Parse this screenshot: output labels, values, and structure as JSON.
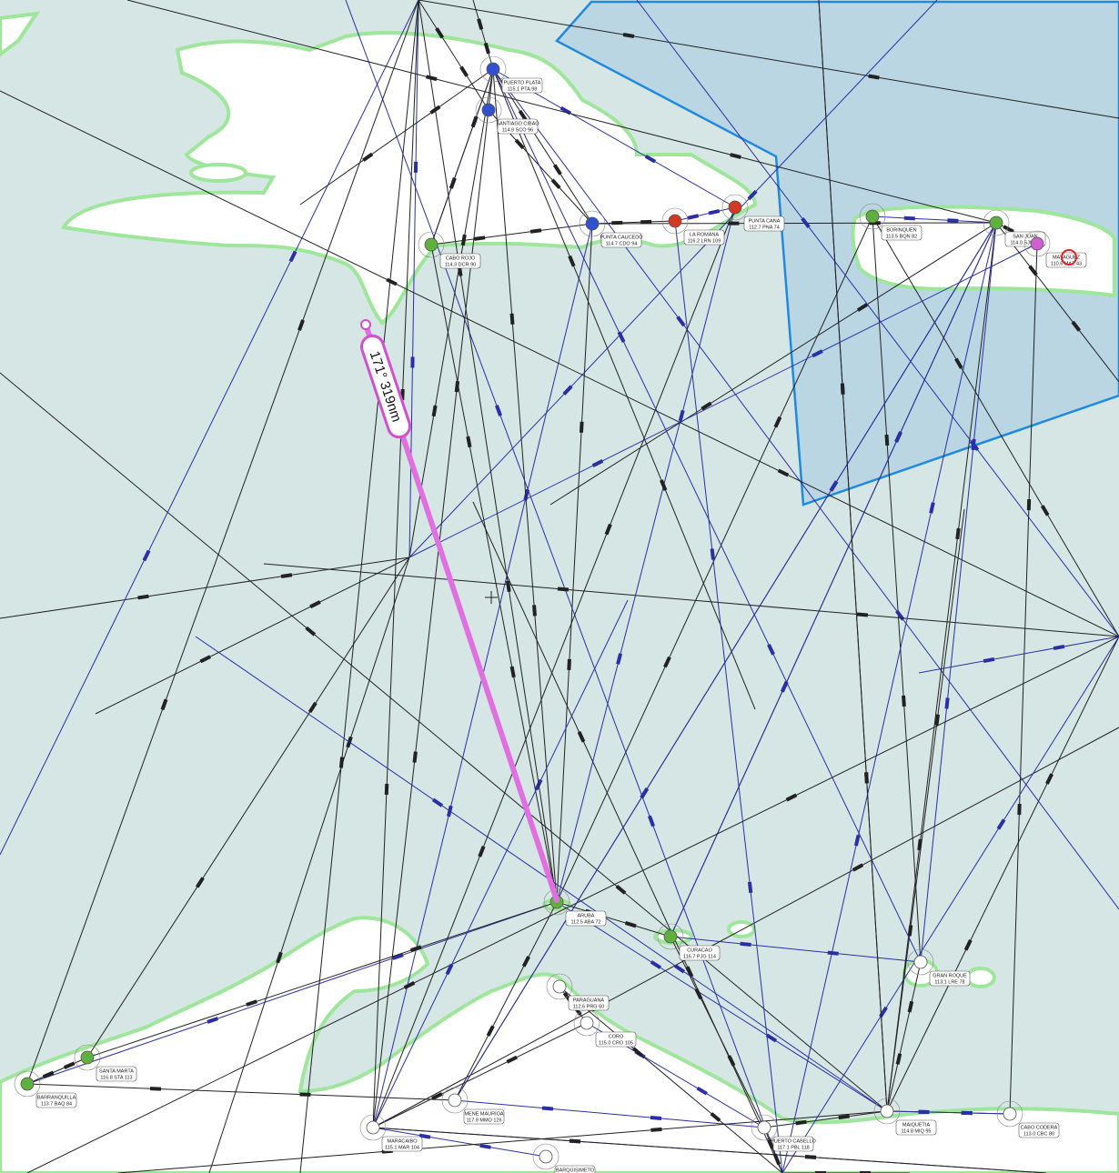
{
  "measurement": {
    "label": "171° 319nm"
  },
  "navaids": [
    {
      "name": "PUERTO PLATA",
      "freq": "115.1 PTA 98"
    },
    {
      "name": "SANTIAGO CIBAO",
      "freq": "114.9 SCO 96"
    },
    {
      "name": "PUNTA CAUCEDO",
      "freq": "114.7 CDO 94"
    },
    {
      "name": "LA ROMANA",
      "freq": "116.2 LRN 109"
    },
    {
      "name": "PUNTA CANA",
      "freq": "112.7 PNA 74"
    },
    {
      "name": "CABO ROJO",
      "freq": "114.3 DCR 90"
    },
    {
      "name": "BORINQUEN",
      "freq": "113.5 BQN 82"
    },
    {
      "name": "SAN JUAN",
      "freq": "114.0 SJU 87"
    },
    {
      "name": "MAYAGUEZ",
      "freq": "110.6 MAZ 43"
    },
    {
      "name": "ARUBA",
      "freq": "112.5 ABA 72"
    },
    {
      "name": "CURACAO",
      "freq": "116.7 PJG 114"
    },
    {
      "name": "PARAGUANA",
      "freq": "112.6 PRG 60"
    },
    {
      "name": "CORO",
      "freq": "115.0 CRO 105"
    },
    {
      "name": "GRAN ROQUE",
      "freq": "113.1 LRE 78"
    },
    {
      "name": "MAIQUETIA",
      "freq": "114.8 MIQ 95"
    },
    {
      "name": "CABO CODERA",
      "freq": "113.0 CBC 80"
    },
    {
      "name": "SANTA MARTA",
      "freq": "116.8 STA 113"
    },
    {
      "name": "BARRANQUILLA",
      "freq": "113.7 BAQ 84"
    },
    {
      "name": "MENE MAURIOA",
      "freq": "117.9 MMO 126"
    },
    {
      "name": "PUERTO CABELLO",
      "freq": "117.1 PBL 118"
    },
    {
      "name": "BARQUISIMETO",
      "freq": "112.2 BRM 59"
    },
    {
      "name": "MARACAIBO",
      "freq": "115.1 MAR 104"
    }
  ]
}
